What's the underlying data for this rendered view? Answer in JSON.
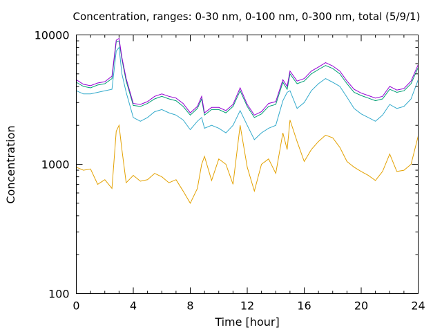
{
  "chart_data": {
    "type": "line",
    "title": "Concentration, ranges: 0-30 nm, 0-100 nm, 0-300 nm, total (5/9/1)",
    "xlabel": "Time [hour]",
    "ylabel": "Concentration",
    "xlim": [
      0,
      24
    ],
    "ylim": [
      100,
      10000
    ],
    "yscale": "log",
    "grid": false,
    "x_ticks": [
      "0",
      "4",
      "8",
      "12",
      "16",
      "20",
      "24"
    ],
    "y_ticks": [
      "100",
      "1000",
      "10000"
    ],
    "x": [
      0,
      0.5,
      1,
      1.5,
      2,
      2.5,
      2.8,
      3,
      3.2,
      3.5,
      4,
      4.5,
      5,
      5.5,
      6,
      6.5,
      7,
      7.5,
      8,
      8.5,
      8.8,
      9,
      9.5,
      10,
      10.5,
      11,
      11.5,
      12,
      12.5,
      13,
      13.5,
      14,
      14.5,
      14.8,
      15,
      15.5,
      16,
      16.5,
      17,
      17.5,
      18,
      18.5,
      19,
      19.5,
      20,
      20.5,
      21,
      21.5,
      22,
      22.5,
      23,
      23.5,
      24
    ],
    "series": [
      {
        "color": "#e3a100",
        "values": [
          950,
          900,
          920,
          700,
          760,
          650,
          1800,
          2000,
          1300,
          720,
          820,
          740,
          760,
          850,
          800,
          720,
          760,
          620,
          500,
          650,
          1000,
          1150,
          750,
          1100,
          1000,
          700,
          2000,
          950,
          620,
          1000,
          1100,
          850,
          1750,
          1300,
          2200,
          1500,
          1050,
          1300,
          1500,
          1680,
          1600,
          1350,
          1050,
          950,
          880,
          820,
          750,
          880,
          1200,
          880,
          900,
          1000,
          1650
        ]
      },
      {
        "color": "#33aacc",
        "values": [
          3700,
          3500,
          3500,
          3600,
          3700,
          3800,
          7500,
          8000,
          5000,
          3600,
          2300,
          2150,
          2300,
          2550,
          2650,
          2500,
          2400,
          2200,
          1850,
          2150,
          2300,
          1900,
          2000,
          1900,
          1750,
          2000,
          2600,
          2000,
          1550,
          1750,
          1900,
          2000,
          3100,
          3600,
          3700,
          2700,
          3000,
          3700,
          4200,
          4600,
          4300,
          4000,
          3300,
          2700,
          2450,
          2300,
          2150,
          2400,
          2900,
          2700,
          2800,
          3200,
          4500
        ]
      },
      {
        "color": "#009e73",
        "values": [
          4300,
          4000,
          3900,
          4100,
          4200,
          4600,
          8800,
          9000,
          6500,
          4400,
          2850,
          2800,
          2950,
          3200,
          3350,
          3200,
          3100,
          2800,
          2400,
          2700,
          3200,
          2400,
          2650,
          2650,
          2500,
          2800,
          3700,
          2800,
          2300,
          2450,
          2800,
          2900,
          4300,
          3800,
          5000,
          4200,
          4400,
          5000,
          5400,
          5800,
          5500,
          5000,
          4200,
          3600,
          3400,
          3250,
          3100,
          3200,
          3800,
          3600,
          3700,
          4200,
          5600
        ]
      },
      {
        "color": "#9400d3",
        "values": [
          4500,
          4150,
          4050,
          4250,
          4350,
          4800,
          9100,
          9400,
          6700,
          4600,
          2950,
          2900,
          3050,
          3350,
          3500,
          3350,
          3250,
          2950,
          2500,
          2800,
          3350,
          2500,
          2750,
          2750,
          2600,
          2900,
          3900,
          2900,
          2400,
          2550,
          2950,
          3050,
          4500,
          4000,
          5250,
          4400,
          4600,
          5250,
          5650,
          6100,
          5750,
          5250,
          4400,
          3800,
          3550,
          3400,
          3250,
          3350,
          4000,
          3750,
          3850,
          4400,
          5900
        ]
      }
    ]
  }
}
